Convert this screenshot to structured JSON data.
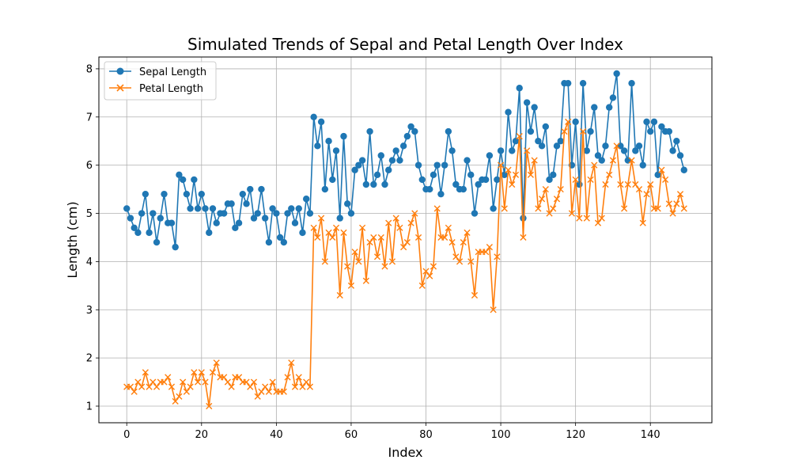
{
  "chart_data": {
    "type": "line",
    "title": "Simulated Trends of Sepal and Petal Length Over Index",
    "xlabel": "Index",
    "ylabel": "Length (cm)",
    "xlim": [
      -7.45,
      156.45
    ],
    "ylim": [
      0.655,
      8.245
    ],
    "xticks": [
      0,
      20,
      40,
      60,
      80,
      100,
      120,
      140
    ],
    "yticks": [
      1,
      2,
      3,
      4,
      5,
      6,
      7,
      8
    ],
    "grid": true,
    "legend_position": "top-left",
    "x": [
      0,
      1,
      2,
      3,
      4,
      5,
      6,
      7,
      8,
      9,
      10,
      11,
      12,
      13,
      14,
      15,
      16,
      17,
      18,
      19,
      20,
      21,
      22,
      23,
      24,
      25,
      26,
      27,
      28,
      29,
      30,
      31,
      32,
      33,
      34,
      35,
      36,
      37,
      38,
      39,
      40,
      41,
      42,
      43,
      44,
      45,
      46,
      47,
      48,
      49,
      50,
      51,
      52,
      53,
      54,
      55,
      56,
      57,
      58,
      59,
      60,
      61,
      62,
      63,
      64,
      65,
      66,
      67,
      68,
      69,
      70,
      71,
      72,
      73,
      74,
      75,
      76,
      77,
      78,
      79,
      80,
      81,
      82,
      83,
      84,
      85,
      86,
      87,
      88,
      89,
      90,
      91,
      92,
      93,
      94,
      95,
      96,
      97,
      98,
      99,
      100,
      101,
      102,
      103,
      104,
      105,
      106,
      107,
      108,
      109,
      110,
      111,
      112,
      113,
      114,
      115,
      116,
      117,
      118,
      119,
      120,
      121,
      122,
      123,
      124,
      125,
      126,
      127,
      128,
      129,
      130,
      131,
      132,
      133,
      134,
      135,
      136,
      137,
      138,
      139,
      140,
      141,
      142,
      143,
      144,
      145,
      146,
      147,
      148,
      149
    ],
    "series": [
      {
        "name": "Sepal Length",
        "color": "#1f77b4",
        "marker": "circle",
        "values": [
          5.1,
          4.9,
          4.7,
          4.6,
          5.0,
          5.4,
          4.6,
          5.0,
          4.4,
          4.9,
          5.4,
          4.8,
          4.8,
          4.3,
          5.8,
          5.7,
          5.4,
          5.1,
          5.7,
          5.1,
          5.4,
          5.1,
          4.6,
          5.1,
          4.8,
          5.0,
          5.0,
          5.2,
          5.2,
          4.7,
          4.8,
          5.4,
          5.2,
          5.5,
          4.9,
          5.0,
          5.5,
          4.9,
          4.4,
          5.1,
          5.0,
          4.5,
          4.4,
          5.0,
          5.1,
          4.8,
          5.1,
          4.6,
          5.3,
          5.0,
          7.0,
          6.4,
          6.9,
          5.5,
          6.5,
          5.7,
          6.3,
          4.9,
          6.6,
          5.2,
          5.0,
          5.9,
          6.0,
          6.1,
          5.6,
          6.7,
          5.6,
          5.8,
          6.2,
          5.6,
          5.9,
          6.1,
          6.3,
          6.1,
          6.4,
          6.6,
          6.8,
          6.7,
          6.0,
          5.7,
          5.5,
          5.5,
          5.8,
          6.0,
          5.4,
          6.0,
          6.7,
          6.3,
          5.6,
          5.5,
          5.5,
          6.1,
          5.8,
          5.0,
          5.6,
          5.7,
          5.7,
          6.2,
          5.1,
          5.7,
          6.3,
          5.8,
          7.1,
          6.3,
          6.5,
          7.6,
          4.9,
          7.3,
          6.7,
          7.2,
          6.5,
          6.4,
          6.8,
          5.7,
          5.8,
          6.4,
          6.5,
          7.7,
          7.7,
          6.0,
          6.9,
          5.6,
          7.7,
          6.3,
          6.7,
          7.2,
          6.2,
          6.1,
          6.4,
          7.2,
          7.4,
          7.9,
          6.4,
          6.3,
          6.1,
          7.7,
          6.3,
          6.4,
          6.0,
          6.9,
          6.7,
          6.9,
          5.8,
          6.8,
          6.7,
          6.7,
          6.3,
          6.5,
          6.2,
          5.9
        ]
      },
      {
        "name": "Petal Length",
        "color": "#ff7f0e",
        "marker": "x",
        "values": [
          1.4,
          1.4,
          1.3,
          1.5,
          1.4,
          1.7,
          1.4,
          1.5,
          1.4,
          1.5,
          1.5,
          1.6,
          1.4,
          1.1,
          1.2,
          1.5,
          1.3,
          1.4,
          1.7,
          1.5,
          1.7,
          1.5,
          1.0,
          1.7,
          1.9,
          1.6,
          1.6,
          1.5,
          1.4,
          1.6,
          1.6,
          1.5,
          1.5,
          1.4,
          1.5,
          1.2,
          1.3,
          1.4,
          1.3,
          1.5,
          1.3,
          1.3,
          1.3,
          1.6,
          1.9,
          1.4,
          1.6,
          1.4,
          1.5,
          1.4,
          4.7,
          4.5,
          4.9,
          4.0,
          4.6,
          4.5,
          4.7,
          3.3,
          4.6,
          3.9,
          3.5,
          4.2,
          4.0,
          4.7,
          3.6,
          4.4,
          4.5,
          4.1,
          4.5,
          3.9,
          4.8,
          4.0,
          4.9,
          4.7,
          4.3,
          4.4,
          4.8,
          5.0,
          4.5,
          3.5,
          3.8,
          3.7,
          3.9,
          5.1,
          4.5,
          4.5,
          4.7,
          4.4,
          4.1,
          4.0,
          4.4,
          4.6,
          4.0,
          3.3,
          4.2,
          4.2,
          4.2,
          4.3,
          3.0,
          4.1,
          6.0,
          5.1,
          5.9,
          5.6,
          5.8,
          6.6,
          4.5,
          6.3,
          5.8,
          6.1,
          5.1,
          5.3,
          5.5,
          5.0,
          5.1,
          5.3,
          5.5,
          6.7,
          6.9,
          5.0,
          5.7,
          4.9,
          6.7,
          4.9,
          5.7,
          6.0,
          4.8,
          4.9,
          5.6,
          5.8,
          6.1,
          6.4,
          5.6,
          5.1,
          5.6,
          6.1,
          5.6,
          5.5,
          4.8,
          5.4,
          5.6,
          5.1,
          5.1,
          5.9,
          5.7,
          5.2,
          5.0,
          5.2,
          5.4,
          5.1
        ]
      }
    ]
  }
}
